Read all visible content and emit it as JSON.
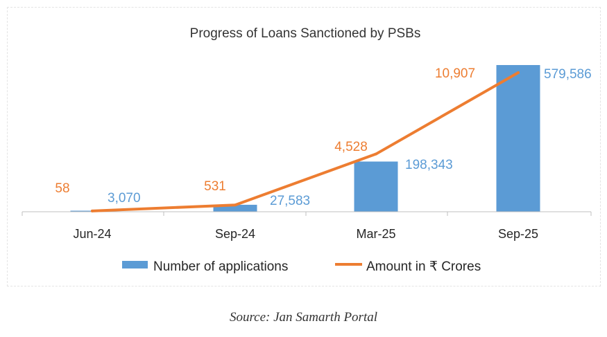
{
  "chart_data": {
    "type": "bar+line",
    "title": "Progress of Loans Sanctioned by PSBs",
    "categories": [
      "Jun-24",
      "Sep-24",
      "Mar-25",
      "Sep-25"
    ],
    "series": [
      {
        "name": "Number of applications",
        "type": "bar",
        "axis": "primary",
        "color": "#5b9bd5",
        "values": [
          3070,
          27583,
          198343,
          579586
        ],
        "labels": [
          "3,070",
          "27,583",
          "198,343",
          "579,586"
        ]
      },
      {
        "name": "Amount in ₹ Crores",
        "type": "line",
        "axis": "secondary",
        "color": "#ed7d31",
        "values": [
          58,
          531,
          4528,
          10907
        ],
        "labels": [
          "58",
          "531",
          "4,528",
          "10,907"
        ]
      }
    ],
    "ylim_primary": [
      0,
      600000
    ],
    "ylim_secondary": [
      0,
      11500
    ],
    "grid": false,
    "legend": "bottom"
  },
  "source": "Source: Jan Samarth Portal"
}
